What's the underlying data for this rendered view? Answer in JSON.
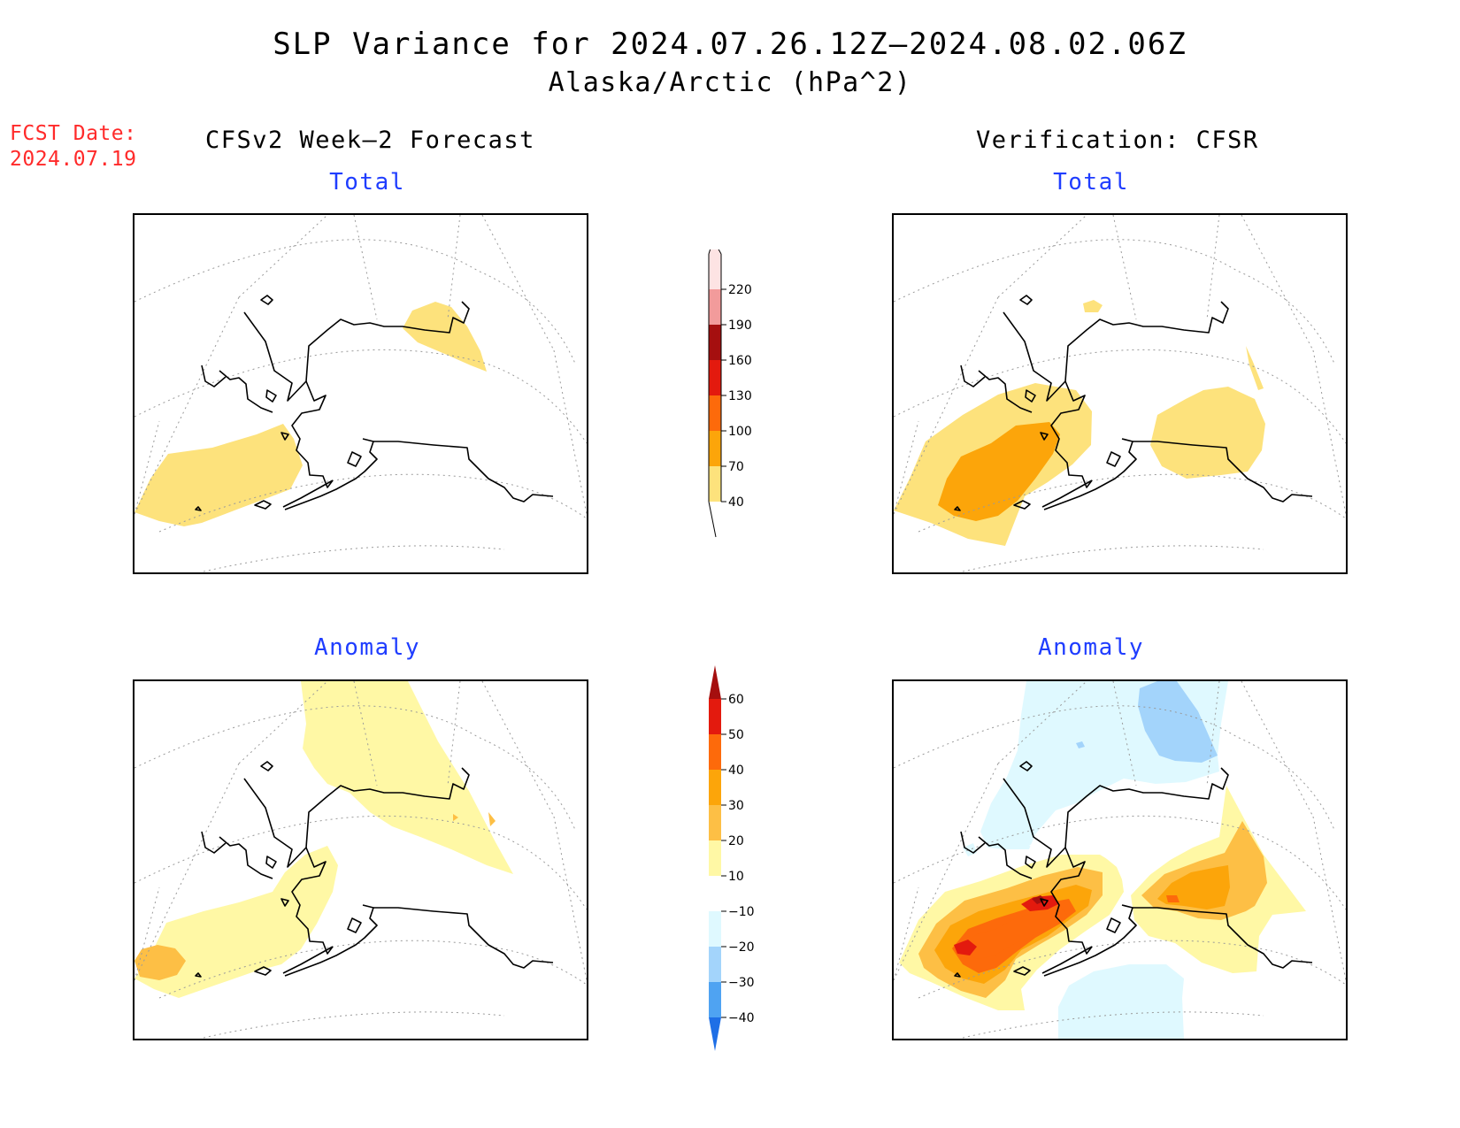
{
  "title": {
    "line1": "SLP Variance for 2024.07.26.12Z–2024.08.02.06Z",
    "line2": "Alaska/Arctic (hPa^2)"
  },
  "forecast_date": {
    "label": "FCST Date:",
    "value": "2024.07.19"
  },
  "columns": {
    "left": "CFSv2 Week–2 Forecast",
    "right": "Verification: CFSR"
  },
  "panels": {
    "top_left": "Total",
    "top_right": "Total",
    "bottom_left": "Anomaly",
    "bottom_right": "Anomaly"
  },
  "colorbars": {
    "total": {
      "labels": [
        "40",
        "70",
        "100",
        "130",
        "160",
        "190",
        "220"
      ],
      "colors": [
        "#fde27c",
        "#fca50a",
        "#fd6a0b",
        "#e31a0e",
        "#a50f0f",
        "#f29b9b",
        "#fde3e3"
      ]
    },
    "anomaly": {
      "labels": [
        "60",
        "50",
        "40",
        "30",
        "20",
        "10",
        "−10",
        "−20",
        "−30",
        "−40"
      ],
      "colors": [
        "#a50f0f",
        "#e31a0e",
        "#fd6a0b",
        "#fca50a",
        "#fdbf45",
        "#fff8a5",
        "#ffffff",
        "#dff9ff",
        "#a3d4fb",
        "#4fa3f2",
        "#1f6fe6"
      ]
    }
  },
  "colors": {
    "fcst_label": "#ff2a2a",
    "panel_title": "#1f3dff",
    "total_40_70": "#fde27c",
    "total_70_100": "#fca50a",
    "anom_10_20": "#fff8a5",
    "anom_20_30": "#fdbf45",
    "anom_30_40": "#fca50a",
    "anom_40_50": "#fd6a0b",
    "anom_50_60": "#e31a0e",
    "anom_gt_60": "#a50f0f",
    "anom_neg_10_20": "#dff9ff",
    "anom_neg_20_30": "#a3d4fb"
  }
}
